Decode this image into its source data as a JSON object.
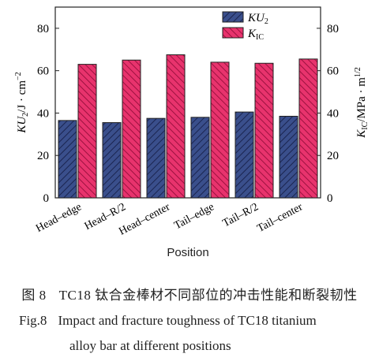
{
  "chart_data": {
    "type": "bar",
    "categories": [
      "Head–edge",
      "Head–R/2",
      "Head–center",
      "Tail–edge",
      "Tail–R/2",
      "Tail–center"
    ],
    "series": [
      {
        "name": "KU2",
        "values": [
          36.5,
          35.5,
          37.5,
          38,
          40.5,
          38.5
        ],
        "color": "#3a4f8c",
        "pattern": "hatch",
        "axis": "left"
      },
      {
        "name": "KIC",
        "values": [
          63,
          65,
          67.5,
          64,
          63.5,
          65.5
        ],
        "color": "#e8336d",
        "pattern": "hatch",
        "axis": "right"
      }
    ],
    "xlabel": "Position",
    "ylabel_left": "KU2/J · cm−2",
    "ylabel_right": "KIC/MPa · m1/2",
    "ylim": [
      0,
      90
    ],
    "yticks": [
      0,
      20,
      40,
      60,
      80
    ],
    "legend_position": "top-right",
    "grid": false
  },
  "caption": {
    "zh_num": "图 8",
    "zh_text": "TC18 钛合金棒材不同部位的冲击性能和断裂韧性",
    "en_num": "Fig.8",
    "en_line1": "Impact and fracture toughness of TC18 titanium",
    "en_line2": "alloy bar at different positions"
  }
}
